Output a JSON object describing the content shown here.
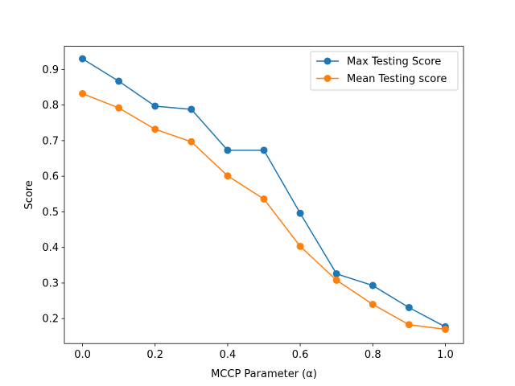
{
  "chart_data": {
    "type": "line",
    "title": "",
    "xlabel": "MCCP Parameter (α)",
    "ylabel": "Score",
    "xlim": [
      -0.05,
      1.05
    ],
    "ylim": [
      0.13,
      0.965
    ],
    "xticks": [
      "0.0",
      "0.2",
      "0.4",
      "0.6",
      "0.8",
      "1.0"
    ],
    "xtick_values": [
      0.0,
      0.2,
      0.4,
      0.6,
      0.8,
      1.0
    ],
    "yticks": [
      "0.2",
      "0.3",
      "0.4",
      "0.5",
      "0.6",
      "0.7",
      "0.8",
      "0.9"
    ],
    "ytick_values": [
      0.2,
      0.3,
      0.4,
      0.5,
      0.6,
      0.7,
      0.8,
      0.9
    ],
    "grid": false,
    "legend_position": "top-right",
    "x": [
      0.0,
      0.1,
      0.2,
      0.3,
      0.4,
      0.5,
      0.6,
      0.7,
      0.8,
      0.9,
      1.0
    ],
    "series": [
      {
        "name": "Max Testing Score",
        "color": "#1f77b4",
        "values": [
          0.93,
          0.867,
          0.797,
          0.788,
          0.673,
          0.673,
          0.496,
          0.326,
          0.293,
          0.231,
          0.177
        ]
      },
      {
        "name": "Mean Testing score",
        "color": "#ff7f0e",
        "values": [
          0.832,
          0.792,
          0.732,
          0.697,
          0.601,
          0.536,
          0.403,
          0.308,
          0.24,
          0.183,
          0.17
        ]
      }
    ]
  }
}
